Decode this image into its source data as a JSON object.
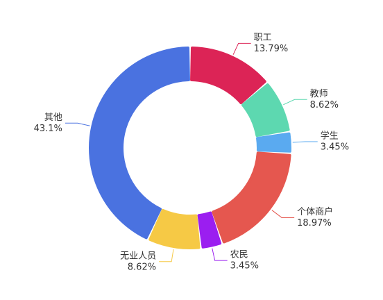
{
  "chart_data": {
    "type": "donut",
    "categories": [
      "职工",
      "教师",
      "学生",
      "个体商户",
      "农民",
      "无业人员",
      "其他"
    ],
    "values": [
      13.79,
      8.62,
      3.45,
      18.97,
      3.45,
      8.62,
      43.1
    ],
    "value_labels": [
      "13.79%",
      "8.62%",
      "3.45%",
      "18.97%",
      "3.45%",
      "8.62%",
      "43.1%"
    ],
    "colors": [
      "#dc2456",
      "#5dd8b0",
      "#5aaaf0",
      "#e5574f",
      "#9b1ef0",
      "#f6c945",
      "#4a72e0"
    ]
  }
}
